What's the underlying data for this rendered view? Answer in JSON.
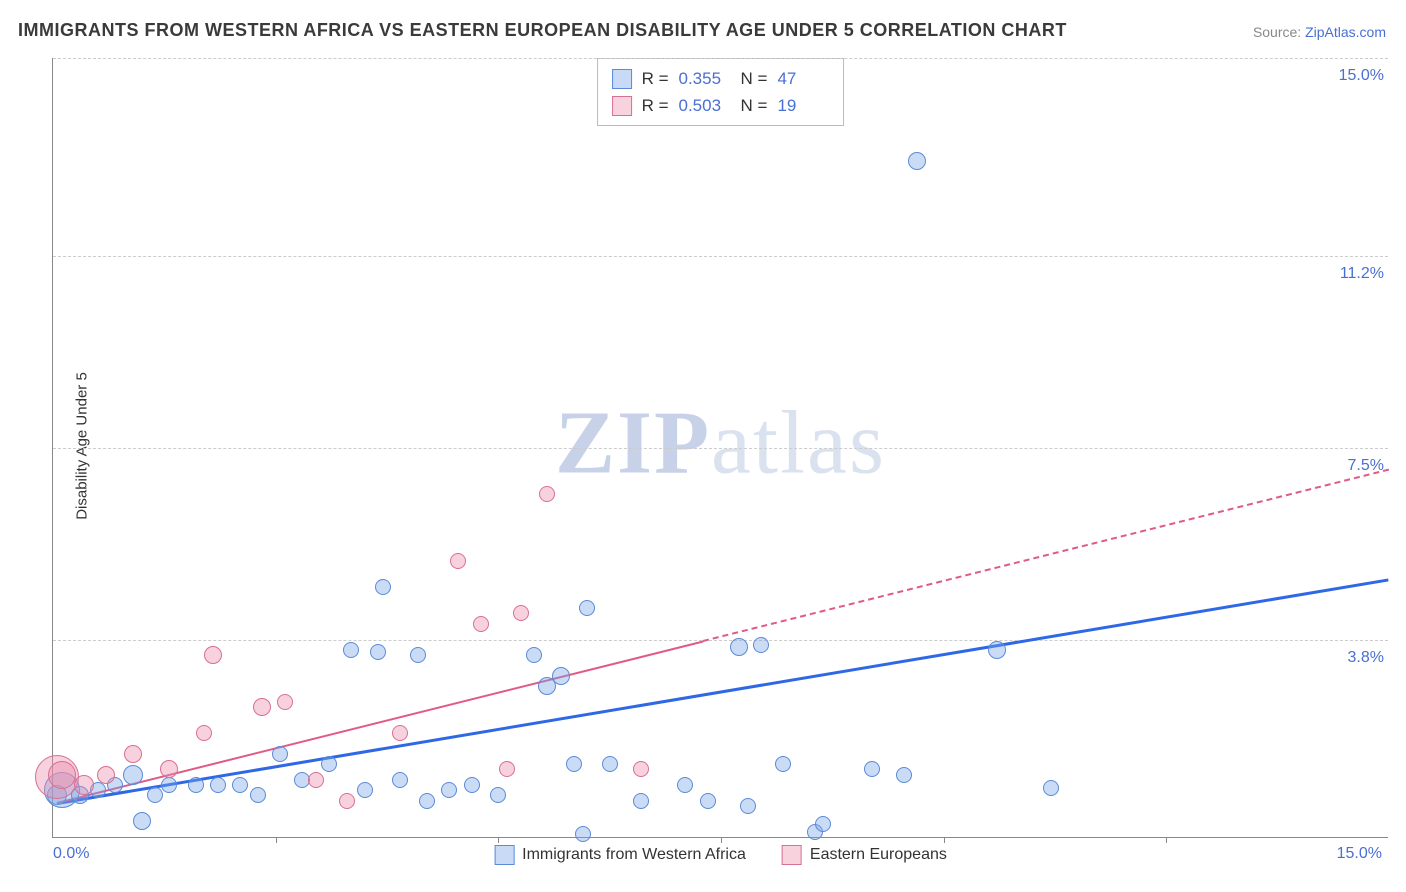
{
  "title": "IMMIGRANTS FROM WESTERN AFRICA VS EASTERN EUROPEAN DISABILITY AGE UNDER 5 CORRELATION CHART",
  "source_label": "Source: ",
  "source_link": "ZipAtlas.com",
  "ylabel": "Disability Age Under 5",
  "watermark_a": "ZIP",
  "watermark_b": "atlas",
  "chart": {
    "type": "scatter",
    "xlim": [
      0,
      15
    ],
    "ylim": [
      0,
      15
    ],
    "x_min_label": "0.0%",
    "x_max_label": "15.0%",
    "yticks": [
      {
        "v": 3.8,
        "label": "3.8%"
      },
      {
        "v": 7.5,
        "label": "7.5%"
      },
      {
        "v": 11.2,
        "label": "11.2%"
      },
      {
        "v": 15.0,
        "label": "15.0%"
      }
    ],
    "xtick_marks": [
      2.5,
      5.0,
      7.5,
      10.0,
      12.5
    ],
    "background_color": "#ffffff",
    "grid_color": "#cccccc",
    "axis_color": "#888888",
    "tick_label_color": "#4a6fd4",
    "series": [
      {
        "name": "Immigrants from Western Africa",
        "color_fill": "rgba(120,165,230,0.4)",
        "color_stroke": "#5b8ad8",
        "css": "blue",
        "r_label": "R = ",
        "r_value": "0.355",
        "n_label": "N = ",
        "n_value": "47",
        "trend": {
          "x1": 0.05,
          "y1": 0.7,
          "x2": 15.0,
          "y2": 5.0,
          "stroke": "#2e68e6",
          "width": 3,
          "dash_after_x": 15.0
        },
        "points": [
          {
            "x": 0.05,
            "y": 0.8,
            "r": 10
          },
          {
            "x": 0.1,
            "y": 0.9,
            "r": 18
          },
          {
            "x": 0.3,
            "y": 0.8,
            "r": 9
          },
          {
            "x": 0.5,
            "y": 0.9,
            "r": 8
          },
          {
            "x": 0.7,
            "y": 1.0,
            "r": 8
          },
          {
            "x": 0.9,
            "y": 1.2,
            "r": 10
          },
          {
            "x": 1.0,
            "y": 0.3,
            "r": 9
          },
          {
            "x": 1.15,
            "y": 0.8,
            "r": 8
          },
          {
            "x": 1.3,
            "y": 1.0,
            "r": 8
          },
          {
            "x": 1.6,
            "y": 1.0,
            "r": 8
          },
          {
            "x": 1.85,
            "y": 1.0,
            "r": 8
          },
          {
            "x": 2.1,
            "y": 1.0,
            "r": 8
          },
          {
            "x": 2.3,
            "y": 0.8,
            "r": 8
          },
          {
            "x": 2.55,
            "y": 1.6,
            "r": 8
          },
          {
            "x": 2.8,
            "y": 1.1,
            "r": 8
          },
          {
            "x": 3.1,
            "y": 1.4,
            "r": 8
          },
          {
            "x": 3.35,
            "y": 3.6,
            "r": 8
          },
          {
            "x": 3.5,
            "y": 0.9,
            "r": 8
          },
          {
            "x": 3.65,
            "y": 3.55,
            "r": 8
          },
          {
            "x": 3.7,
            "y": 4.8,
            "r": 8
          },
          {
            "x": 3.9,
            "y": 1.1,
            "r": 8
          },
          {
            "x": 4.1,
            "y": 3.5,
            "r": 8
          },
          {
            "x": 4.2,
            "y": 0.7,
            "r": 8
          },
          {
            "x": 4.45,
            "y": 0.9,
            "r": 8
          },
          {
            "x": 4.7,
            "y": 1.0,
            "r": 8
          },
          {
            "x": 5.0,
            "y": 0.8,
            "r": 8
          },
          {
            "x": 5.4,
            "y": 3.5,
            "r": 8
          },
          {
            "x": 5.55,
            "y": 2.9,
            "r": 9
          },
          {
            "x": 5.7,
            "y": 3.1,
            "r": 9
          },
          {
            "x": 5.85,
            "y": 1.4,
            "r": 8
          },
          {
            "x": 5.95,
            "y": 0.05,
            "r": 8
          },
          {
            "x": 6.0,
            "y": 4.4,
            "r": 8
          },
          {
            "x": 6.25,
            "y": 1.4,
            "r": 8
          },
          {
            "x": 6.6,
            "y": 0.7,
            "r": 8
          },
          {
            "x": 7.1,
            "y": 1.0,
            "r": 8
          },
          {
            "x": 7.35,
            "y": 0.7,
            "r": 8
          },
          {
            "x": 7.7,
            "y": 3.65,
            "r": 9
          },
          {
            "x": 7.8,
            "y": 0.6,
            "r": 8
          },
          {
            "x": 7.95,
            "y": 3.7,
            "r": 8
          },
          {
            "x": 8.2,
            "y": 1.4,
            "r": 8
          },
          {
            "x": 8.55,
            "y": 0.1,
            "r": 8
          },
          {
            "x": 8.65,
            "y": 0.25,
            "r": 8
          },
          {
            "x": 9.2,
            "y": 1.3,
            "r": 8
          },
          {
            "x": 9.55,
            "y": 1.2,
            "r": 8
          },
          {
            "x": 9.7,
            "y": 13.0,
            "r": 9
          },
          {
            "x": 10.6,
            "y": 3.6,
            "r": 9
          },
          {
            "x": 11.2,
            "y": 0.95,
            "r": 8
          }
        ]
      },
      {
        "name": "Eastern Europeans",
        "color_fill": "rgba(235,140,170,0.4)",
        "color_stroke": "#d86f94",
        "css": "pink",
        "r_label": "R = ",
        "r_value": "0.503",
        "n_label": "N = ",
        "n_value": "19",
        "trend": {
          "x1": 0.05,
          "y1": 0.7,
          "x2": 15.0,
          "y2": 7.1,
          "stroke": "#e05a86",
          "width": 2,
          "dash_after_x": 7.3
        },
        "points": [
          {
            "x": 0.05,
            "y": 1.15,
            "r": 22
          },
          {
            "x": 0.1,
            "y": 1.2,
            "r": 14
          },
          {
            "x": 0.35,
            "y": 1.0,
            "r": 10
          },
          {
            "x": 0.6,
            "y": 1.2,
            "r": 9
          },
          {
            "x": 0.9,
            "y": 1.6,
            "r": 9
          },
          {
            "x": 1.3,
            "y": 1.3,
            "r": 9
          },
          {
            "x": 1.7,
            "y": 2.0,
            "r": 8
          },
          {
            "x": 1.8,
            "y": 3.5,
            "r": 9
          },
          {
            "x": 2.35,
            "y": 2.5,
            "r": 9
          },
          {
            "x": 2.6,
            "y": 2.6,
            "r": 8
          },
          {
            "x": 2.95,
            "y": 1.1,
            "r": 8
          },
          {
            "x": 3.3,
            "y": 0.7,
            "r": 8
          },
          {
            "x": 3.9,
            "y": 2.0,
            "r": 8
          },
          {
            "x": 4.55,
            "y": 5.3,
            "r": 8
          },
          {
            "x": 4.8,
            "y": 4.1,
            "r": 8
          },
          {
            "x": 5.1,
            "y": 1.3,
            "r": 8
          },
          {
            "x": 5.25,
            "y": 4.3,
            "r": 8
          },
          {
            "x": 5.55,
            "y": 6.6,
            "r": 8
          },
          {
            "x": 6.6,
            "y": 1.3,
            "r": 8
          }
        ]
      }
    ]
  },
  "legend_bottom": [
    {
      "swatch": "blue",
      "label": "Immigrants from Western Africa"
    },
    {
      "swatch": "pink",
      "label": "Eastern Europeans"
    }
  ]
}
